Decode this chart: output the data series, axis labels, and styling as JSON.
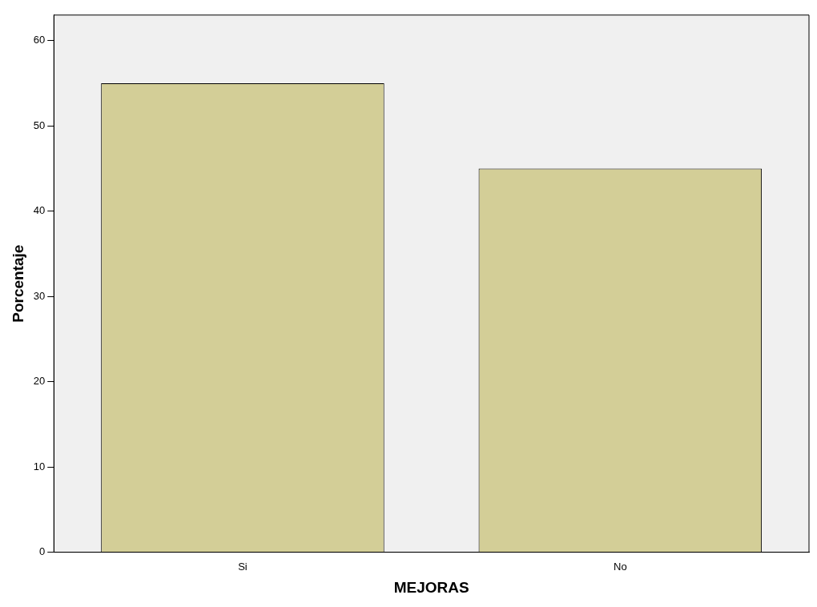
{
  "chart_data": {
    "type": "bar",
    "xlabel": "MEJORAS",
    "ylabel": "Porcentaje",
    "categories": [
      "Si",
      "No"
    ],
    "values": [
      55,
      45
    ],
    "color": "#d3ce97",
    "ylim": [
      0,
      63
    ],
    "yticks": [
      0,
      10,
      20,
      30,
      40,
      50,
      60
    ],
    "grid": false,
    "legend": false
  }
}
